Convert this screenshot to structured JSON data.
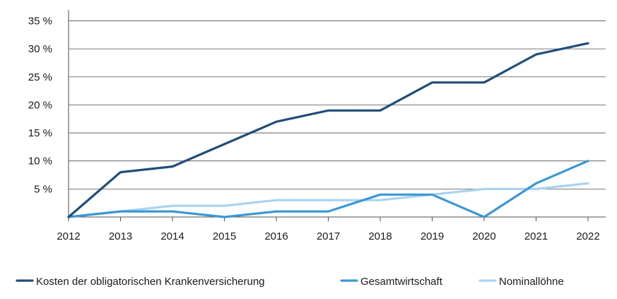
{
  "chart_data": {
    "type": "line",
    "title": "",
    "xlabel": "",
    "ylabel": "",
    "x": [
      "2012",
      "2013",
      "2014",
      "2015",
      "2016",
      "2017",
      "2018",
      "2019",
      "2020",
      "2021",
      "2022"
    ],
    "y_ticks": [
      {
        "value": 5,
        "label": "5 %"
      },
      {
        "value": 10,
        "label": "10 %"
      },
      {
        "value": 15,
        "label": "15 %"
      },
      {
        "value": 20,
        "label": "20 %"
      },
      {
        "value": 25,
        "label": "25 %"
      },
      {
        "value": 30,
        "label": "30 %"
      },
      {
        "value": 35,
        "label": "35 %"
      }
    ],
    "ylim": [
      0,
      37
    ],
    "grid": "horizontal",
    "legend_position": "bottom",
    "series": [
      {
        "name": "Kosten der obligatorischen Krankenversicherung",
        "color": "#1f4e79",
        "values": [
          0,
          8,
          9,
          13,
          17,
          19,
          19,
          24,
          24,
          29,
          31
        ]
      },
      {
        "name": "Gesamtwirtschaft",
        "color": "#3b97d3",
        "values": [
          0,
          1,
          1,
          0,
          1,
          1,
          4,
          4,
          0,
          6,
          10
        ]
      },
      {
        "name": "Nominallöhne",
        "color": "#a9d3f0",
        "values": [
          0,
          1,
          2,
          2,
          3,
          3,
          3,
          4,
          5,
          5,
          6
        ]
      }
    ]
  }
}
